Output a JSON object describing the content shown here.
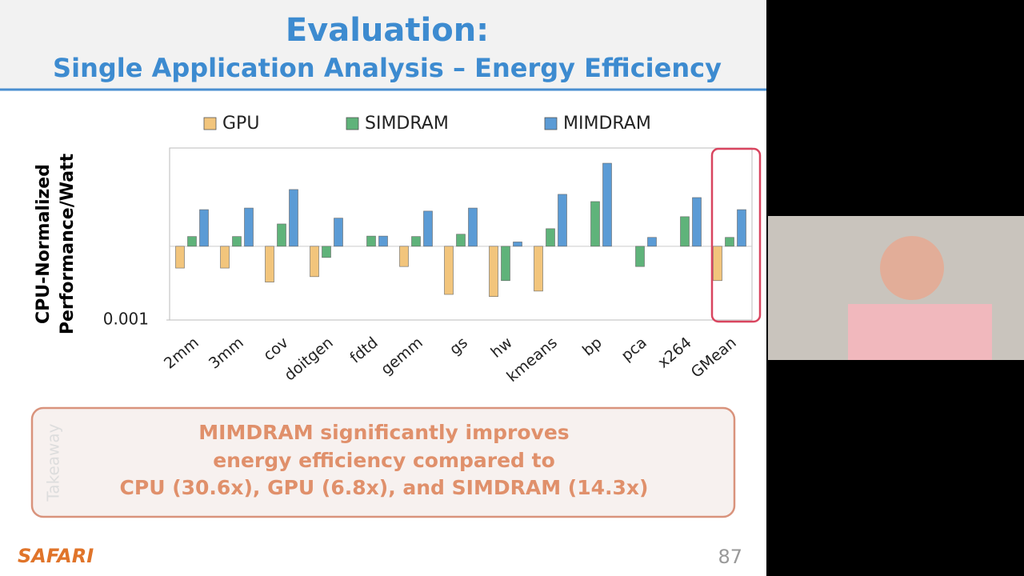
{
  "slide": {
    "title": "Evaluation:",
    "subtitle": "Single Application Analysis – Energy Efficiency",
    "takeaway_label": "Takeaway",
    "takeaway": [
      "MIMDRAM significantly improves",
      "energy efficiency compared to",
      "CPU (30.6x), GPU (6.8x), and SIMDRAM (14.3x)"
    ],
    "logo": "SAFARI",
    "page_number": "87"
  },
  "chart_data": {
    "type": "bar",
    "y_label": [
      "CPU-Normalized",
      "Performance/Watt"
    ],
    "categories": [
      "2mm",
      "3mm",
      "cov",
      "doitgen",
      "fdtd",
      "gemm",
      "gs",
      "hw",
      "kmeans",
      "bp",
      "pca",
      "x264",
      "GMean"
    ],
    "series": [
      {
        "name": "GPU",
        "color": "#f2c57c",
        "values": [
          0.13,
          0.13,
          0.035,
          0.058,
          null,
          0.15,
          0.011,
          0.009,
          0.015,
          null,
          null,
          null,
          0.04
        ]
      },
      {
        "name": "SIMDRAM",
        "color": "#5fb37a",
        "values": [
          2.5,
          2.5,
          8.1,
          0.35,
          2.6,
          2.5,
          3.1,
          0.04,
          5.2,
          66,
          0.15,
          16,
          2.3
        ]
      },
      {
        "name": "MIMDRAM",
        "color": "#5b9bd5",
        "values": [
          31,
          36,
          204,
          14,
          2.6,
          27,
          36,
          1.5,
          130,
          2400,
          2.3,
          96,
          31
        ]
      }
    ],
    "log_scale": true,
    "ylim": [
      0.001,
      10000
    ],
    "yticks": [
      0.001
    ],
    "legend": "top"
  }
}
